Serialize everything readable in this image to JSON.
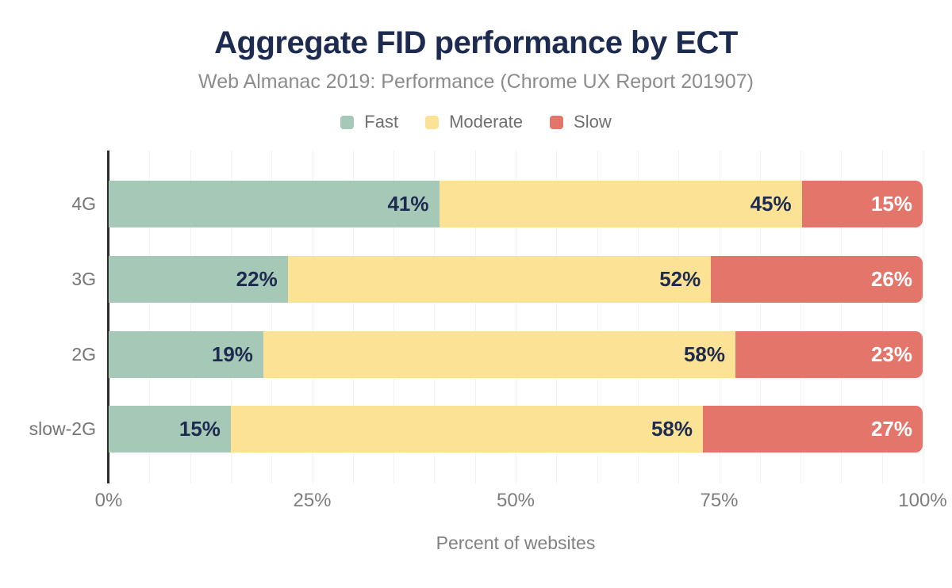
{
  "header": {
    "title": "Aggregate FID performance by ECT",
    "subtitle": "Web Almanac 2019: Performance (Chrome UX Report 201907)"
  },
  "legend": {
    "items": [
      {
        "label": "Fast",
        "color": "#a6c8b7"
      },
      {
        "label": "Moderate",
        "color": "#fce294"
      },
      {
        "label": "Slow",
        "color": "#e3756b"
      }
    ]
  },
  "chart_data": {
    "type": "bar",
    "orientation": "horizontal",
    "stacked": true,
    "title": "Aggregate FID performance by ECT",
    "subtitle": "Web Almanac 2019: Performance (Chrome UX Report 201907)",
    "categories": [
      "4G",
      "3G",
      "2G",
      "slow-2G"
    ],
    "series": [
      {
        "name": "Fast",
        "color": "#a6c8b7",
        "label_color": "#1d2b50",
        "values": [
          41,
          22,
          19,
          15
        ]
      },
      {
        "name": "Moderate",
        "color": "#fce294",
        "label_color": "#1d2b50",
        "values": [
          45,
          52,
          58,
          58
        ]
      },
      {
        "name": "Slow",
        "color": "#e3756b",
        "label_color": "#ffffff",
        "values": [
          15,
          26,
          23,
          27
        ]
      }
    ],
    "value_suffix": "%",
    "xlabel": "Percent of websites",
    "x_ticks": [
      {
        "label": "0%",
        "value": 0
      },
      {
        "label": "25%",
        "value": 25
      },
      {
        "label": "50%",
        "value": 50
      },
      {
        "label": "75%",
        "value": 75
      },
      {
        "label": "100%",
        "value": 100
      }
    ],
    "xlim": [
      0,
      100
    ],
    "grid": {
      "minor_step": 5,
      "color": "#f2f2f2"
    },
    "legend_position": "top"
  },
  "colors": {
    "background": "#ffffff",
    "title": "#1c2b4f",
    "subtitle": "#8c8c8c",
    "axis_line": "#2d2d2d",
    "tick_label": "#7d7d7d",
    "category_label": "#757575",
    "legend_label": "#6f6f6f",
    "gridline": "#f2f2f2"
  }
}
